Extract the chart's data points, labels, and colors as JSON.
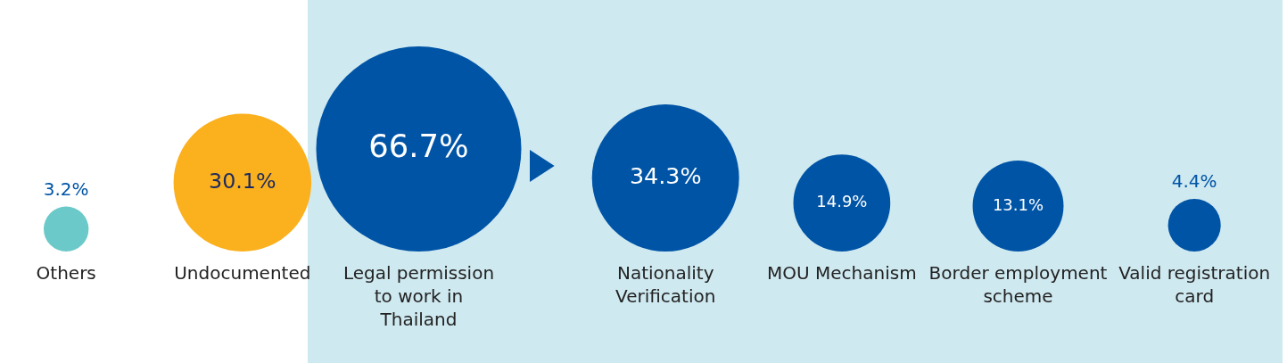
{
  "chart_data": {
    "type": "other",
    "categories": [
      "Others",
      "Undocumented",
      "Legal permission to work in Thailand",
      "Nationality Verification",
      "MOU Mechanism",
      "Border employment scheme",
      "Valid registration card"
    ],
    "values": [
      3.2,
      30.1,
      66.7,
      34.3,
      14.9,
      13.1,
      4.4
    ],
    "value_labels": [
      "3.2%",
      "30.1%",
      "66.7%",
      "34.3%",
      "14.9%",
      "13.1%",
      "4.4%"
    ],
    "colors": [
      "#6cc9c9",
      "#fbb01d",
      "#0054a6",
      "#0054a6",
      "#0054a6",
      "#0054a6",
      "#0054a6"
    ]
  }
}
